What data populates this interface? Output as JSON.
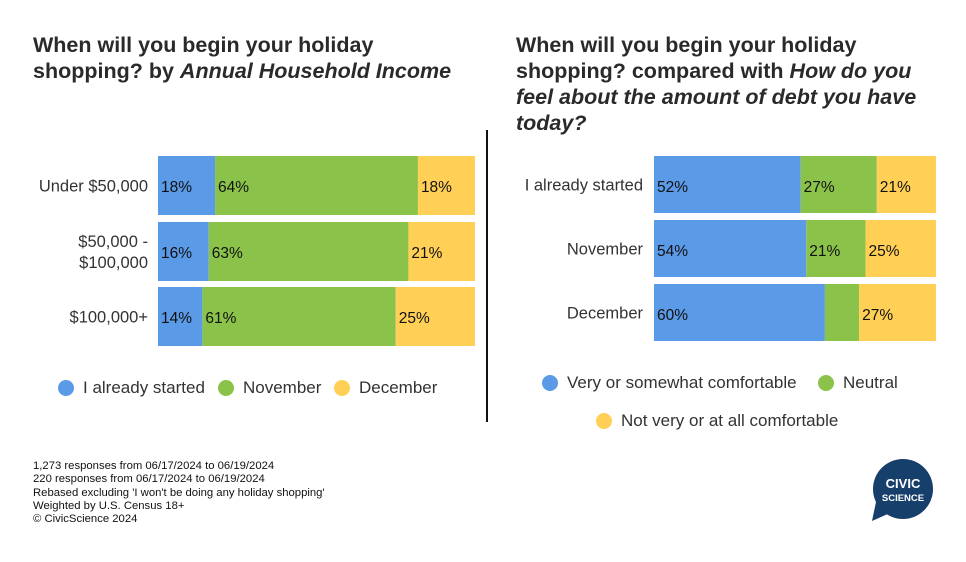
{
  "titles": {
    "left": {
      "bold": "When will you begin your holiday shopping?",
      "plain": " by ",
      "italic": "Annual Household Income"
    },
    "right": {
      "bold": "When will you begin your holiday shopping?",
      "plain": " compared with ",
      "italic": "How do you feel about the amount of debt you have today?"
    }
  },
  "chart_data": [
    {
      "type": "bar",
      "orientation": "horizontal-stacked-100",
      "categories": [
        [
          "Under $50,000"
        ],
        [
          "$50,000 -",
          "$100,000"
        ],
        [
          "$100,000+"
        ]
      ],
      "series": [
        {
          "name": "I already started",
          "values": [
            18,
            16,
            14
          ],
          "color": "#5b9ae6"
        },
        {
          "name": "November",
          "values": [
            64,
            63,
            61
          ],
          "color": "#8bc34a"
        },
        {
          "name": "December",
          "values": [
            18,
            21,
            25
          ],
          "color": "#ffd055"
        }
      ],
      "value_suffix": "%",
      "legend": "bottom"
    },
    {
      "type": "bar",
      "orientation": "horizontal-stacked-100",
      "categories": [
        [
          "I already started"
        ],
        [
          "November"
        ],
        [
          "December"
        ]
      ],
      "series": [
        {
          "name": "Very or somewhat comfortable",
          "values": [
            52,
            54,
            60
          ],
          "color": "#5b9ae6"
        },
        {
          "name": "Neutral",
          "values": [
            27,
            21,
            12
          ],
          "color": "#8bc34a",
          "labels": [
            "27%",
            "21%",
            ""
          ]
        },
        {
          "name": "Not very or at all comfortable",
          "values": [
            21,
            25,
            27
          ],
          "color": "#ffd055"
        }
      ],
      "value_suffix": "%",
      "legend": "bottom"
    }
  ],
  "notes": [
    "1,273 responses from 06/17/2024 to 06/19/2024",
    "220 responses from 06/17/2024 to 06/19/2024",
    "Rebased excluding 'I won't be doing any holiday shopping'",
    "Weighted by U.S. Census 18+",
    "© CivicScience 2024"
  ],
  "logo": {
    "line1": "CIVIC",
    "line2": "SCIENCE",
    "color": "#173f6b"
  }
}
